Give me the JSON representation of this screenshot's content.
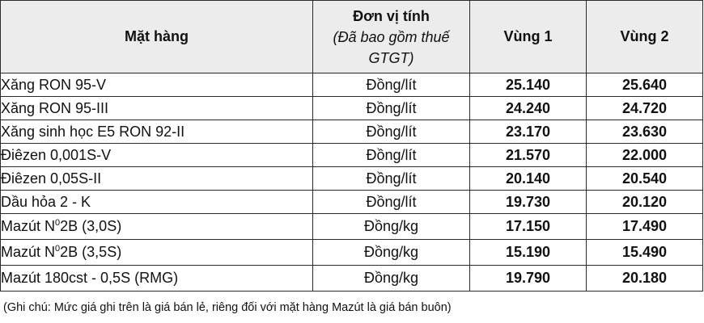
{
  "table": {
    "headers": {
      "item": "Mặt hàng",
      "unit_line1": "Đơn vị tính",
      "unit_line2": "(Đã bao gồm thuế GTGT)",
      "region1": "Vùng 1",
      "region2": "Vùng 2"
    },
    "rows": [
      {
        "name": "Xăng RON 95-V",
        "unit": "Đồng/lít",
        "region1": "25.140",
        "region2": "25.640"
      },
      {
        "name": "Xăng RON 95-III",
        "unit": "Đồng/lít",
        "region1": "24.240",
        "region2": "24.720"
      },
      {
        "name": "Xăng sinh học E5 RON 92-II",
        "unit": "Đồng/lít",
        "region1": "23.170",
        "region2": "23.630"
      },
      {
        "name": "Điêzen 0,001S-V",
        "unit": "Đồng/lít",
        "region1": "21.570",
        "region2": "22.000"
      },
      {
        "name": "Điêzen 0,05S-II",
        "unit": "Đồng/lít",
        "region1": "20.140",
        "region2": "20.540"
      },
      {
        "name": "Dầu hỏa 2 - K",
        "unit": "Đồng/lít",
        "region1": "19.730",
        "region2": "20.120"
      },
      {
        "name_pre": "Mazút N",
        "name_sup": "0",
        "name_post": "2B (3,0S)",
        "unit": "Đồng/kg",
        "region1": "17.150",
        "region2": "17.490"
      },
      {
        "name_pre": "Mazút N",
        "name_sup": "0",
        "name_post": "2B (3,5S)",
        "unit": "Đồng/kg",
        "region1": "15.190",
        "region2": "15.490"
      },
      {
        "name": "Mazút 180cst - 0,5S (RMG)",
        "unit": "Đồng/kg",
        "region1": "19.790",
        "region2": "20.180"
      }
    ]
  },
  "note": "(Ghi chú: Mức giá ghi trên là giá bán lẻ, riêng đối với mặt hàng Mazút là giá bán buôn)"
}
